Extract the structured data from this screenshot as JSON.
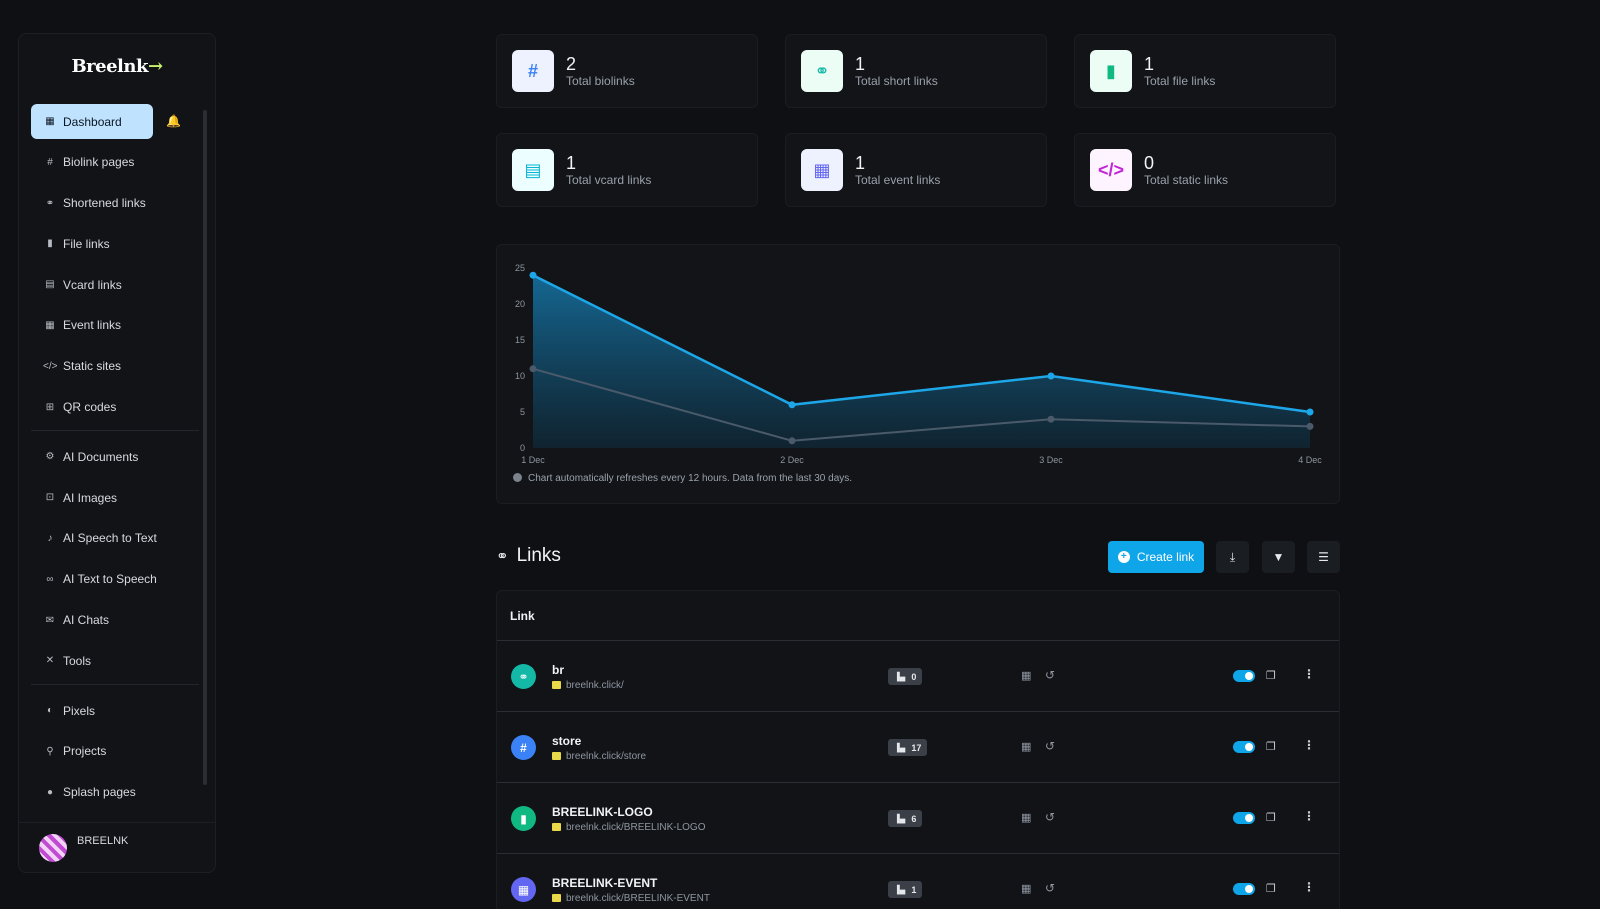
{
  "brand": {
    "logo_text": "Breelnk",
    "logo_arrow": "→"
  },
  "sidebar": {
    "items": [
      {
        "label": "Dashboard",
        "icon": "grid-icon",
        "glyph": "▦"
      },
      {
        "label": "Biolink pages",
        "icon": "hash-icon",
        "glyph": "#"
      },
      {
        "label": "Shortened links",
        "icon": "link-icon",
        "glyph": "⚭"
      },
      {
        "label": "File links",
        "icon": "file-icon",
        "glyph": "▮"
      },
      {
        "label": "Vcard links",
        "icon": "id-card-icon",
        "glyph": "▤"
      },
      {
        "label": "Event links",
        "icon": "calendar-icon",
        "glyph": "▦"
      },
      {
        "label": "Static sites",
        "icon": "code-icon",
        "glyph": "</>"
      },
      {
        "label": "QR codes",
        "icon": "qrcode-icon",
        "glyph": "⊞"
      },
      {
        "label": "AI Documents",
        "icon": "robot-icon",
        "glyph": "⚙"
      },
      {
        "label": "AI Images",
        "icon": "image-icon",
        "glyph": "⊡"
      },
      {
        "label": "AI Speech to Text",
        "icon": "microphone-icon",
        "glyph": "♪"
      },
      {
        "label": "AI Text to Speech",
        "icon": "voicemail-icon",
        "glyph": "∞"
      },
      {
        "label": "AI Chats",
        "icon": "chat-icon",
        "glyph": "✉"
      },
      {
        "label": "Tools",
        "icon": "tools-icon",
        "glyph": "✕"
      },
      {
        "label": "Pixels",
        "icon": "adjust-icon",
        "glyph": "◐"
      },
      {
        "label": "Projects",
        "icon": "project-diagram-icon",
        "glyph": "⚲"
      },
      {
        "label": "Splash pages",
        "icon": "droplet-icon",
        "glyph": "●"
      }
    ],
    "user_name": "BREELNK"
  },
  "stats": [
    {
      "value": "2",
      "label": "Total biolinks",
      "icon": "hash-icon",
      "glyph": "#",
      "bg": "#eef2ff",
      "fg": "#3b82f6"
    },
    {
      "value": "1",
      "label": "Total short links",
      "icon": "link-icon",
      "glyph": "⚭",
      "bg": "#ecfdf5",
      "fg": "#14b8a6"
    },
    {
      "value": "1",
      "label": "Total file links",
      "icon": "file-icon",
      "glyph": "▮",
      "bg": "#ecfdf5",
      "fg": "#10b981"
    },
    {
      "value": "1",
      "label": "Total vcard links",
      "icon": "id-card-icon",
      "glyph": "▤",
      "bg": "#ecfeff",
      "fg": "#06b6d4"
    },
    {
      "value": "1",
      "label": "Total event links",
      "icon": "calendar-icon",
      "glyph": "▦",
      "bg": "#eef2ff",
      "fg": "#6366f1"
    },
    {
      "value": "0",
      "label": "Total static links",
      "icon": "code-icon",
      "glyph": "</>",
      "bg": "#fdf4ff",
      "fg": "#c026d3"
    }
  ],
  "chart_data": {
    "type": "area",
    "categories": [
      "1 Dec",
      "2 Dec",
      "3 Dec",
      "4 Dec"
    ],
    "series": [
      {
        "values": [
          24,
          6,
          10,
          5
        ],
        "color": "#1ea7e8"
      },
      {
        "values": [
          11,
          1,
          4,
          3
        ],
        "color": "#4a5a6a"
      }
    ],
    "ylim": [
      0,
      25
    ],
    "yticks": [
      0,
      5,
      10,
      15,
      20,
      25
    ],
    "grid": false,
    "note": "Chart automatically refreshes every 12 hours. Data from the last 30 days."
  },
  "links_section": {
    "title": "Links",
    "create_label": "Create link",
    "column_header": "Link",
    "rows": [
      {
        "name": "br",
        "url": "breelnk.click/",
        "clicks": "0",
        "icon": "link-icon",
        "glyph": "⚭",
        "color": "#14b8a6"
      },
      {
        "name": "store",
        "url": "breelnk.click/store",
        "clicks": "17",
        "icon": "hash-icon",
        "glyph": "#",
        "color": "#3b82f6"
      },
      {
        "name": "BREELINK-LOGO",
        "url": "breelnk.click/BREELINK-LOGO",
        "clicks": "6",
        "icon": "file-icon",
        "glyph": "▮",
        "color": "#10b981"
      },
      {
        "name": "BREELINK-EVENT",
        "url": "breelnk.click/BREELINK-EVENT",
        "clicks": "1",
        "icon": "calendar-icon",
        "glyph": "▦",
        "color": "#6366f1"
      }
    ]
  }
}
